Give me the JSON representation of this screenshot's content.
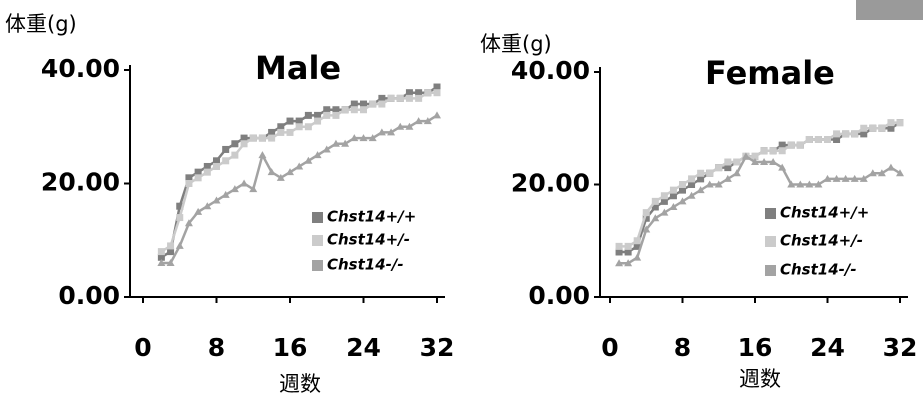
{
  "chart_data": [
    {
      "type": "line",
      "title": "Male",
      "y_label": "体重(g)",
      "x_label": "週数",
      "x": [
        2,
        3,
        4,
        5,
        6,
        7,
        8,
        9,
        10,
        11,
        12,
        13,
        14,
        15,
        16,
        17,
        18,
        19,
        20,
        21,
        22,
        23,
        24,
        25,
        26,
        27,
        28,
        29,
        30,
        31,
        32
      ],
      "series": [
        {
          "name": "Chst14+/+",
          "color": "#7f7f7f",
          "marker": "square",
          "values": [
            7,
            8,
            16,
            21,
            22,
            23,
            24,
            26,
            27,
            28,
            28,
            28,
            29,
            30,
            31,
            31,
            32,
            32,
            33,
            33,
            33,
            34,
            34,
            34,
            35,
            35,
            35,
            36,
            36,
            36,
            37
          ]
        },
        {
          "name": "Chst14+/-",
          "color": "#cbcbcb",
          "marker": "square",
          "values": [
            8,
            9,
            14,
            20,
            21,
            22,
            23,
            24,
            25,
            27,
            28,
            28,
            28,
            29,
            29,
            30,
            30,
            31,
            32,
            32,
            33,
            33,
            33,
            34,
            34,
            35,
            35,
            35,
            35,
            36,
            36
          ]
        },
        {
          "name": "Chst14-/-",
          "color": "#a3a3a3",
          "marker": "triangle",
          "values": [
            6,
            6,
            9,
            13,
            15,
            16,
            17,
            18,
            19,
            20,
            19,
            25,
            22,
            21,
            22,
            23,
            24,
            25,
            26,
            27,
            27,
            28,
            28,
            28,
            29,
            29,
            30,
            30,
            31,
            31,
            32
          ]
        }
      ],
      "xlim": [
        0,
        32
      ],
      "ylim": [
        0,
        40
      ],
      "xticks": [
        0,
        8,
        16,
        24,
        32
      ],
      "yticks": [
        {
          "value": 0,
          "label": "0.00"
        },
        {
          "value": 20,
          "label": "20.00"
        },
        {
          "value": 40,
          "label": "40.00"
        }
      ]
    },
    {
      "type": "line",
      "title": "Female",
      "y_label": "体重(g)",
      "x_label": "週数",
      "x": [
        1,
        2,
        3,
        4,
        5,
        6,
        7,
        8,
        9,
        10,
        11,
        12,
        13,
        14,
        15,
        16,
        17,
        18,
        19,
        20,
        21,
        22,
        23,
        24,
        25,
        26,
        27,
        28,
        29,
        30,
        31,
        32
      ],
      "series": [
        {
          "name": "Chst14+/+",
          "color": "#7f7f7f",
          "marker": "square",
          "values": [
            8,
            8,
            9,
            14,
            16,
            17,
            18,
            19,
            20,
            21,
            22,
            23,
            23,
            24,
            25,
            25,
            26,
            26,
            27,
            27,
            27,
            28,
            28,
            28,
            28,
            29,
            29,
            29,
            30,
            30,
            30,
            31
          ]
        },
        {
          "name": "Chst14+/-",
          "color": "#cbcbcb",
          "marker": "square",
          "values": [
            9,
            9,
            10,
            15,
            17,
            18,
            19,
            20,
            21,
            22,
            22,
            23,
            24,
            24,
            25,
            25,
            26,
            26,
            26,
            27,
            27,
            28,
            28,
            28,
            29,
            29,
            29,
            30,
            30,
            30,
            31,
            31
          ]
        },
        {
          "name": "Chst14-/-",
          "color": "#a3a3a3",
          "marker": "triangle",
          "values": [
            6,
            6,
            7,
            12,
            14,
            15,
            16,
            17,
            18,
            19,
            20,
            20,
            21,
            22,
            25,
            24,
            24,
            24,
            23,
            20,
            20,
            20,
            20,
            21,
            21,
            21,
            21,
            21,
            22,
            22,
            23,
            22
          ]
        }
      ],
      "xlim": [
        0,
        32
      ],
      "ylim": [
        0,
        40
      ],
      "xticks": [
        0,
        8,
        16,
        24,
        32
      ],
      "yticks": [
        {
          "value": 0,
          "label": "0.00"
        },
        {
          "value": 20,
          "label": "20.00"
        },
        {
          "value": 40,
          "label": "40.00"
        }
      ]
    }
  ]
}
